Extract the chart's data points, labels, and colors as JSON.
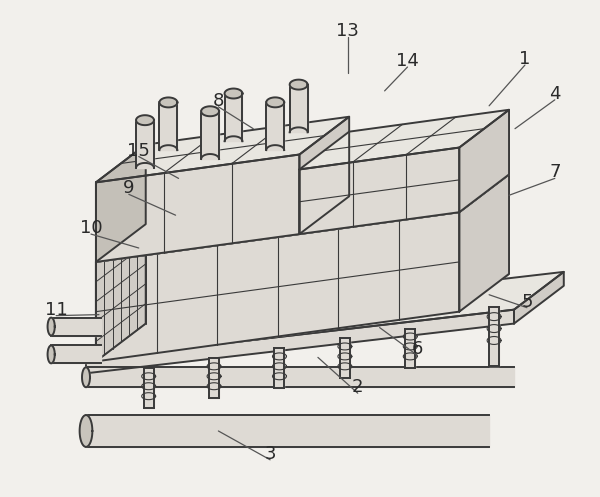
{
  "bg": "#f2f0ec",
  "lc": "#3a3a3a",
  "lw": 1.4,
  "face_top": "#e8e6e0",
  "face_front": "#dedad4",
  "face_left": "#d0ccc6",
  "face_dark": "#c4c0b8",
  "white_bg": "#f5f3ef",
  "pipe_fill": "#dedad4",
  "pipe_dark": "#c8c4bc",
  "labels": [
    [
      "1",
      526,
      58,
      490,
      105
    ],
    [
      "2",
      358,
      388,
      318,
      358
    ],
    [
      "3",
      270,
      455,
      218,
      432
    ],
    [
      "4",
      556,
      93,
      516,
      128
    ],
    [
      "5",
      528,
      302,
      490,
      295
    ],
    [
      "6",
      418,
      350,
      380,
      328
    ],
    [
      "7",
      556,
      172,
      510,
      195
    ],
    [
      "8",
      218,
      100,
      253,
      128
    ],
    [
      "9",
      128,
      188,
      175,
      215
    ],
    [
      "10",
      90,
      228,
      138,
      248
    ],
    [
      "11",
      55,
      310,
      98,
      315
    ],
    [
      "13",
      348,
      30,
      348,
      72
    ],
    [
      "14",
      408,
      60,
      385,
      90
    ],
    [
      "15",
      138,
      150,
      178,
      178
    ]
  ]
}
